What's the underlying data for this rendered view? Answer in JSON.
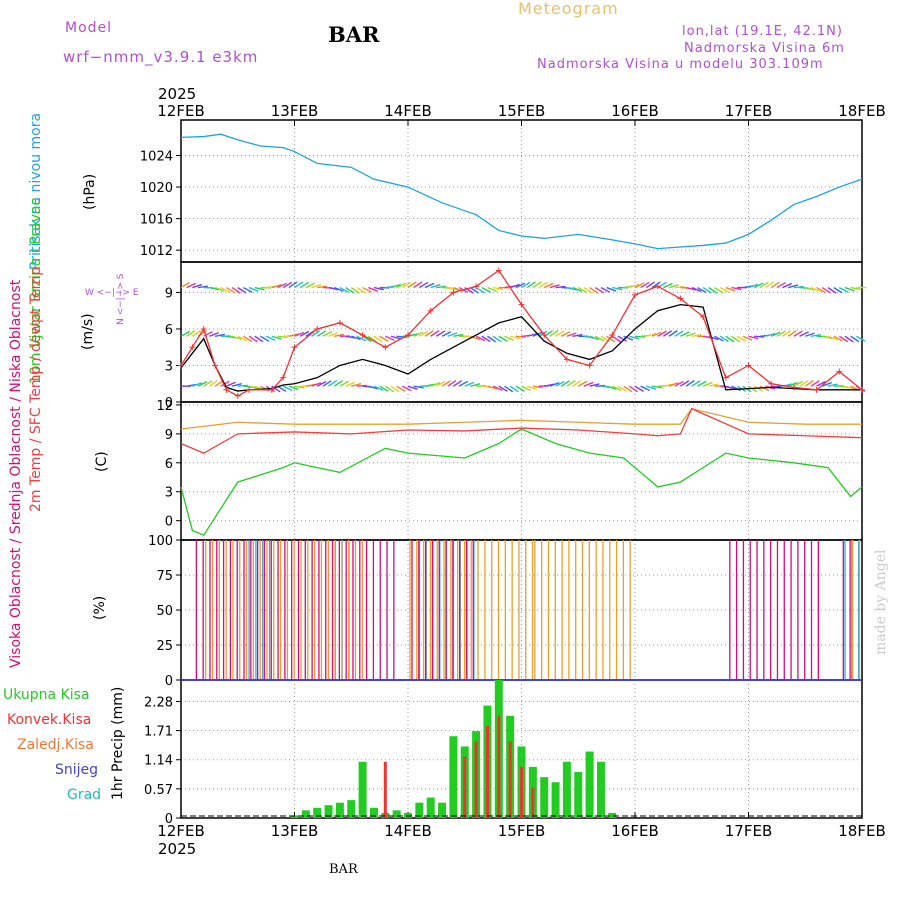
{
  "header": {
    "model_label": "Model",
    "model_name": "wrf−nmm_v3.9.1 e3km",
    "station": "BAR",
    "title": "Meteogram",
    "location_line": "lon,lat (19.1E, 42.1N)",
    "elevation_line": "Nadmorska Visina 6m",
    "model_elevation_line": "Nadmorska Visina u modelu 303.109m"
  },
  "footer": {
    "station": "BAR",
    "credit": "made by Angel"
  },
  "colors": {
    "pressure": "#1ea3e0",
    "wind_speed": "#000000",
    "gust": "#ee3333",
    "t2m": "#ee4040",
    "sfc": "#e8a030",
    "dewpt": "#22cc22",
    "cloud_high": "#33aadd",
    "cloud_mid": "#e8a030",
    "cloud_low": "#cc1177",
    "precip_total": "#22cc22",
    "precip_conv": "#ee3333",
    "precip_frz": "#ee7733",
    "snow": "#4444cc",
    "hail": "#22bbbb",
    "label_purple": "#b050d0",
    "title_orange": "#e8c070"
  },
  "chart_data": [
    {
      "type": "line",
      "title": "Pritisak na nivou mora",
      "ylabel": "(hPa)",
      "x_categories": [
        "12FEB",
        "13FEB",
        "14FEB",
        "15FEB",
        "16FEB",
        "17FEB",
        "18FEB"
      ],
      "year": "2025",
      "ylim": [
        1010.5,
        1028.5
      ],
      "yticks": [
        1012,
        1016,
        1020,
        1024
      ],
      "series": [
        {
          "name": "Pritisak na nivou mora",
          "unit": "hPa",
          "x_days": [
            0,
            0.2,
            0.35,
            0.5,
            0.7,
            0.9,
            1.0,
            1.2,
            1.5,
            1.7,
            2.0,
            2.3,
            2.6,
            2.8,
            3.0,
            3.2,
            3.5,
            3.8,
            4.0,
            4.2,
            4.4,
            4.6,
            4.8,
            5.0,
            5.2,
            5.4,
            5.6,
            5.8,
            6.0
          ],
          "values": [
            1026.3,
            1026.4,
            1026.7,
            1026.0,
            1025.2,
            1025.0,
            1024.5,
            1023.0,
            1022.5,
            1021.0,
            1020.0,
            1018.0,
            1016.5,
            1014.5,
            1013.8,
            1013.5,
            1014.0,
            1013.3,
            1012.8,
            1012.2,
            1012.4,
            1012.6,
            1012.9,
            1014.0,
            1015.8,
            1017.8,
            1018.8,
            1020.0,
            1021.0
          ]
        }
      ]
    },
    {
      "type": "line",
      "title": "10m Vjetar Brzina i Pravac",
      "ylabel": "(m/s)",
      "direction_legend": "W <−|−> E",
      "direction_legend_vertical": "N <−|−> S",
      "ylim": [
        0,
        11.5
      ],
      "yticks": [
        0,
        3,
        6,
        9
      ],
      "series": [
        {
          "name": "speed",
          "unit": "m/s",
          "x_days": [
            0,
            0.1,
            0.2,
            0.3,
            0.4,
            0.5,
            0.6,
            0.8,
            0.9,
            1.0,
            1.2,
            1.4,
            1.6,
            1.8,
            2.0,
            2.2,
            2.4,
            2.6,
            2.8,
            3.0,
            3.2,
            3.4,
            3.6,
            3.8,
            4.0,
            4.2,
            4.4,
            4.6,
            4.8,
            5.0,
            5.2,
            5.4,
            5.6,
            5.8,
            6.0
          ],
          "values": [
            2.8,
            4.0,
            5.2,
            3.0,
            1.2,
            0.9,
            1.0,
            1.1,
            1.4,
            1.5,
            2.0,
            3.0,
            3.5,
            3.0,
            2.3,
            3.5,
            4.5,
            5.5,
            6.5,
            7.0,
            5.0,
            4.0,
            3.5,
            4.2,
            6.0,
            7.5,
            8.0,
            7.8,
            1.0,
            1.1,
            1.2,
            1.1,
            1.0,
            1.0,
            1.0
          ]
        },
        {
          "name": "gust",
          "unit": "m/s",
          "x_days": [
            0,
            0.1,
            0.2,
            0.3,
            0.4,
            0.5,
            0.6,
            0.8,
            0.9,
            1.0,
            1.2,
            1.4,
            1.6,
            1.8,
            2.0,
            2.2,
            2.4,
            2.6,
            2.8,
            3.0,
            3.2,
            3.4,
            3.6,
            3.8,
            4.0,
            4.2,
            4.4,
            4.6,
            4.8,
            5.0,
            5.2,
            5.4,
            5.6,
            5.8,
            6.0
          ],
          "values": [
            3.0,
            4.5,
            6.0,
            3.0,
            1.0,
            0.5,
            1.0,
            1.0,
            2.0,
            4.5,
            6.0,
            6.5,
            5.5,
            4.5,
            5.5,
            7.5,
            9.0,
            9.5,
            10.8,
            8.0,
            5.5,
            3.5,
            3.0,
            5.5,
            8.8,
            9.5,
            8.5,
            7.0,
            2.0,
            3.0,
            1.5,
            1.2,
            1.0,
            2.5,
            1.0
          ]
        }
      ]
    },
    {
      "type": "line",
      "title": "2m Temp / SFC Temp / dewpt Temp",
      "ylabel": "(C)",
      "ylim": [
        -2,
        12.3
      ],
      "yticks": [
        0,
        3,
        6,
        9,
        12
      ],
      "series": [
        {
          "name": "2m Temp",
          "unit": "C",
          "x_days": [
            0,
            0.2,
            0.5,
            1.0,
            1.5,
            2.0,
            2.5,
            3.0,
            3.5,
            4.0,
            4.2,
            4.4,
            4.5,
            5.0,
            5.5,
            6.0
          ],
          "values": [
            8.0,
            7.0,
            9.0,
            9.2,
            9.0,
            9.4,
            9.3,
            9.6,
            9.4,
            9.0,
            8.8,
            9.0,
            11.6,
            9.0,
            8.8,
            8.6
          ]
        },
        {
          "name": "SFC Temp",
          "unit": "C",
          "x_days": [
            0,
            0.5,
            1.0,
            1.5,
            2.0,
            2.5,
            3.0,
            3.5,
            4.0,
            4.4,
            4.5,
            5.0,
            5.5,
            6.0
          ],
          "values": [
            9.5,
            10.2,
            10.0,
            10.0,
            10.0,
            10.2,
            10.4,
            10.2,
            10.0,
            10.0,
            11.6,
            10.2,
            10.0,
            10.0
          ]
        },
        {
          "name": "dewpt Temp",
          "unit": "C",
          "x_days": [
            0,
            0.1,
            0.2,
            0.5,
            0.9,
            1.0,
            1.4,
            1.8,
            2.0,
            2.5,
            2.8,
            3.0,
            3.3,
            3.6,
            3.9,
            4.0,
            4.2,
            4.4,
            4.6,
            4.8,
            5.0,
            5.4,
            5.7,
            5.9,
            6.0
          ],
          "values": [
            3.5,
            -1.0,
            -1.5,
            4.0,
            5.5,
            6.0,
            5.0,
            7.5,
            7.0,
            6.5,
            8.0,
            9.5,
            8.0,
            7.0,
            6.5,
            5.5,
            3.5,
            4.0,
            5.5,
            7.0,
            6.5,
            6.0,
            5.5,
            2.5,
            3.5
          ]
        }
      ]
    },
    {
      "type": "bar",
      "title": "Visoka Oblacnost / Srednja Oblacnost / Niska Oblacnost",
      "ylabel": "(%)",
      "ylim": [
        0,
        100
      ],
      "yticks": [
        0,
        25,
        50,
        75,
        100
      ],
      "series": [
        {
          "name": "Visoka Oblacnost",
          "unit": "%",
          "segments_days": [
            [
              0.6,
              0.8
            ],
            [
              1.3,
              1.5
            ],
            [
              2.1,
              2.6
            ],
            [
              5.85,
              6.0
            ]
          ],
          "value": 100
        },
        {
          "name": "Srednja Oblacnost",
          "unit": "%",
          "segments_days": [
            [
              0.2,
              1.6
            ],
            [
              2.0,
              3.1
            ],
            [
              3.1,
              4.0
            ],
            [
              5.9,
              6.0
            ]
          ],
          "value": 100
        },
        {
          "name": "Niska Oblacnost",
          "unit": "%",
          "segments_days": [
            [
              0.1,
              1.9
            ],
            [
              2.0,
              2.6
            ],
            [
              4.8,
              5.6
            ],
            [
              5.8,
              5.9
            ]
          ],
          "value": 100
        }
      ]
    },
    {
      "type": "bar",
      "title": "1hr Precip",
      "ylabel": "1hr Precip (mm)",
      "ylim": [
        0,
        2.7
      ],
      "yticks": [
        0,
        0.57,
        1.14,
        1.71,
        2.28
      ],
      "legend": [
        "Ukupna Kisa",
        "Konvek.Kisa",
        "Zaledj.Kisa",
        "Snijeg",
        "Grad"
      ],
      "series": [
        {
          "name": "Ukupna Kisa",
          "unit": "mm",
          "x_days": [
            1.0,
            1.1,
            1.2,
            1.3,
            1.4,
            1.5,
            1.6,
            1.7,
            1.8,
            1.9,
            2.0,
            2.1,
            2.2,
            2.3,
            2.4,
            2.5,
            2.6,
            2.7,
            2.8,
            2.9,
            3.0,
            3.1,
            3.2,
            3.3,
            3.4,
            3.5,
            3.6,
            3.7,
            3.8
          ],
          "values": [
            0.05,
            0.15,
            0.2,
            0.25,
            0.3,
            0.35,
            1.1,
            0.2,
            0.1,
            0.15,
            0.1,
            0.3,
            0.4,
            0.3,
            1.6,
            1.4,
            1.7,
            2.2,
            2.7,
            2.0,
            1.4,
            1.0,
            0.8,
            0.7,
            1.1,
            0.9,
            1.3,
            1.1,
            0.1
          ]
        },
        {
          "name": "Konvek.Kisa",
          "unit": "mm",
          "x_days": [
            1.8,
            2.5,
            2.6,
            2.7,
            2.8,
            2.9,
            3.0,
            3.1
          ],
          "values": [
            1.1,
            1.2,
            1.5,
            1.8,
            2.0,
            1.5,
            1.0,
            0.6
          ]
        }
      ]
    }
  ]
}
